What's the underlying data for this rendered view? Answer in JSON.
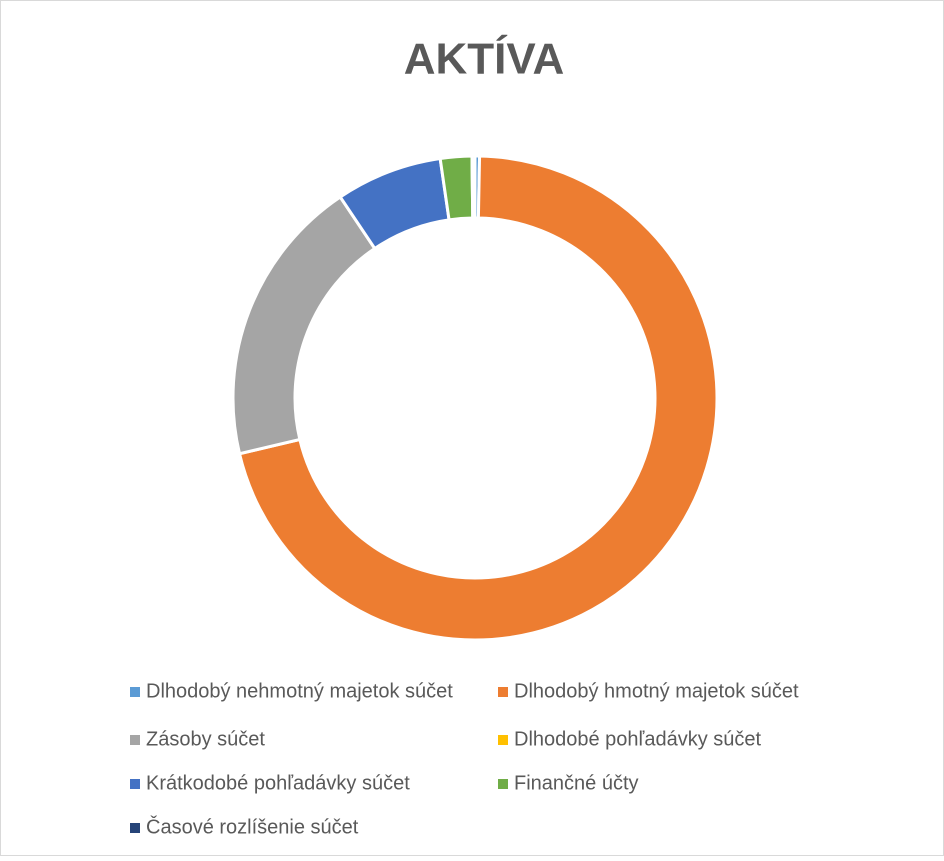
{
  "chart_data": {
    "type": "donut",
    "title": "AKTÍVA",
    "categories": [
      "Dlhodobý nehmotný majetok súčet",
      "Dlhodobý hmotný majetok súčet",
      "Zásoby súčet",
      "Dlhodobé pohľadávky súčet",
      "Krátkodobé pohľadávky súčet",
      "Finančné účty",
      "Časové rozlíšenie súčet"
    ],
    "values": [
      0.3,
      71.0,
      19.3,
      0,
      7.1,
      2.1,
      0.2
    ],
    "colors": [
      "#5b9bd5",
      "#ed7d31",
      "#a5a5a5",
      "#ffc000",
      "#4472c4",
      "#70ad47",
      "#264478"
    ],
    "legend": "bottom"
  }
}
